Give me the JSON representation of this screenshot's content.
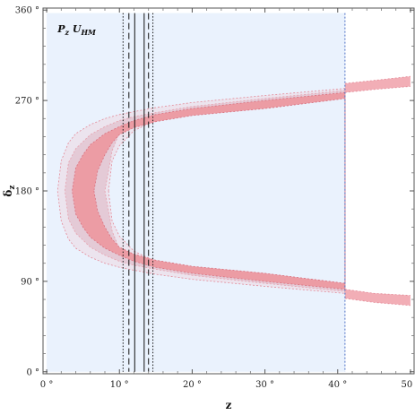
{
  "chart_data": {
    "type": "area",
    "title": "",
    "panel_label": {
      "main": "P",
      "sub_main": "z",
      "tail": " U",
      "sub_tail": "HM"
    },
    "xlabel": "z",
    "ylabel": {
      "main": "δ",
      "sub": "z"
    },
    "xlim": [
      -0.5,
      50.5
    ],
    "ylim": [
      -2,
      362
    ],
    "x_ticks": [
      0,
      10,
      20,
      30,
      40,
      50
    ],
    "x_tick_labels": [
      "0 °",
      "10 °",
      "20 °",
      "30 °",
      "40 °",
      "50 °"
    ],
    "y_ticks": [
      0,
      90,
      180,
      270,
      360
    ],
    "y_tick_labels": [
      "0 °",
      "90 °",
      "180 °",
      "270 °",
      "360 °"
    ],
    "background_region": {
      "x": [
        0,
        41
      ],
      "y": [
        0,
        357
      ],
      "color": "#eaf2fd"
    },
    "right_boundary_line": {
      "x": 41,
      "color": "#4b6fc4",
      "style": "dotted"
    },
    "bands": [
      {
        "level": "outer",
        "fill": "#ece4ee",
        "edge": "#e48a98",
        "upper": {
          "x": [
            1.5,
            2,
            3,
            4,
            6,
            8,
            10,
            12,
            15,
            20,
            30,
            41
          ],
          "y": [
            180,
            210,
            228,
            237,
            246,
            252,
            256,
            259,
            263,
            268,
            275,
            282
          ]
        },
        "lower": {
          "x": [
            1.5,
            2,
            3,
            4,
            6,
            8,
            10,
            12,
            15,
            20,
            30,
            41
          ],
          "y": [
            180,
            150,
            132,
            123,
            114,
            108,
            104,
            101,
            97,
            92,
            85,
            78
          ]
        },
        "inner_upper": {
          "x": [
            41,
            30,
            20,
            15,
            12,
            10,
            9,
            8.5
          ],
          "y": [
            280,
            268,
            260,
            250,
            240,
            225,
            210,
            180
          ]
        },
        "inner_lower": {
          "x": [
            41,
            30,
            20,
            15,
            12,
            10,
            9,
            8.5
          ],
          "y": [
            80,
            92,
            100,
            110,
            120,
            135,
            150,
            180
          ]
        }
      },
      {
        "level": "middle",
        "fill": "#e4cad6",
        "edge": "#e7a0ad",
        "upper": {
          "x": [
            2.5,
            3,
            4,
            6,
            8,
            10,
            12,
            15,
            20,
            30,
            41
          ],
          "y": [
            180,
            208,
            222,
            236,
            244,
            250,
            254,
            258,
            264,
            272,
            280
          ]
        },
        "lower": {
          "x": [
            2.5,
            3,
            4,
            6,
            8,
            10,
            12,
            15,
            20,
            30,
            41
          ],
          "y": [
            180,
            152,
            138,
            124,
            116,
            110,
            106,
            102,
            96,
            88,
            80
          ]
        },
        "inner_upper": {
          "x": [
            41,
            30,
            20,
            15,
            12,
            10,
            9,
            8.5,
            8
          ],
          "y": [
            278,
            267,
            259,
            252,
            245,
            238,
            220,
            200,
            180
          ]
        },
        "inner_lower": {
          "x": [
            41,
            30,
            20,
            15,
            12,
            10,
            9,
            8.5,
            8
          ],
          "y": [
            82,
            93,
            101,
            108,
            115,
            122,
            140,
            160,
            180
          ]
        }
      },
      {
        "level": "inner",
        "fill": "#ec9ca4",
        "edge": "#d9707e",
        "upper": {
          "x": [
            3.5,
            4,
            5,
            6,
            8,
            10,
            12,
            15,
            20,
            30,
            41
          ],
          "y": [
            180,
            203,
            216,
            226,
            237,
            244,
            250,
            256,
            262,
            270,
            278
          ]
        },
        "lower": {
          "x": [
            3.5,
            4,
            5,
            6,
            8,
            10,
            12,
            15,
            20,
            30,
            41
          ],
          "y": [
            180,
            157,
            144,
            134,
            123,
            116,
            110,
            104,
            98,
            90,
            82
          ]
        },
        "inner_upper": {
          "x": [
            41,
            30,
            20,
            15,
            12,
            10,
            9,
            8,
            7,
            6.5
          ],
          "y": [
            272,
            262,
            255,
            249,
            243,
            236,
            228,
            216,
            200,
            180
          ]
        },
        "inner_lower": {
          "x": [
            41,
            30,
            20,
            15,
            12,
            10,
            9,
            8,
            7,
            6.5
          ],
          "y": [
            88,
            98,
            105,
            111,
            117,
            124,
            132,
            144,
            160,
            180
          ]
        }
      }
    ],
    "tail_bands": [
      {
        "branch": "upper",
        "fill": "#f2aeb6",
        "edge": "#e48a98",
        "x": [
          41,
          45,
          50
        ],
        "y_upper": [
          287,
          290,
          294
        ],
        "y_lower": [
          278,
          281,
          284
        ]
      },
      {
        "branch": "lower",
        "fill": "#f2aeb6",
        "edge": "#e48a98",
        "x": [
          41,
          45,
          50
        ],
        "y_upper": [
          82,
          78,
          76
        ],
        "y_lower": [
          73,
          69,
          66
        ]
      }
    ],
    "vertical_lines": [
      {
        "x": 10.5,
        "style": "dotted"
      },
      {
        "x": 11.3,
        "style": "dashed"
      },
      {
        "x": 12.1,
        "style": "solid"
      },
      {
        "x": 13.4,
        "style": "solid"
      },
      {
        "x": 14.0,
        "style": "dashed"
      },
      {
        "x": 14.6,
        "style": "dotted"
      }
    ],
    "grid": false,
    "legend": "none"
  }
}
